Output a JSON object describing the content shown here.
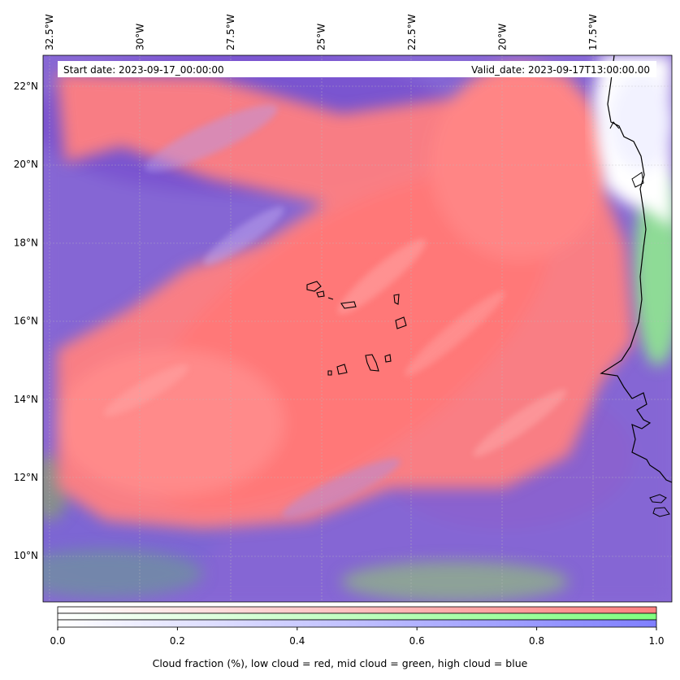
{
  "map": {
    "info_box": {
      "start_date": "Start date: 2023-09-17_00:00:00",
      "valid_date": "Valid_date: 2023-09-17T13:00:00.00"
    },
    "lon_labels": [
      {
        "lon": -32.5,
        "label": "32.5°W"
      },
      {
        "lon": -30.0,
        "label": "30°W"
      },
      {
        "lon": -27.5,
        "label": "27.5°W"
      },
      {
        "lon": -25.0,
        "label": "25°W"
      },
      {
        "lon": -22.5,
        "label": "22.5°W"
      },
      {
        "lon": -20.0,
        "label": "20°W"
      },
      {
        "lon": -17.5,
        "label": "17.5°W"
      }
    ],
    "lat_labels": [
      {
        "lat": 22,
        "label": "22°N"
      },
      {
        "lat": 20,
        "label": "20°N"
      },
      {
        "lat": 18,
        "label": "18°N"
      },
      {
        "lat": 16,
        "label": "16°N"
      },
      {
        "lat": 14,
        "label": "14°N"
      },
      {
        "lat": 12,
        "label": "12°N"
      },
      {
        "lat": 10,
        "label": "10°N"
      }
    ],
    "extent": {
      "lon_min": -32.6,
      "lon_max": -15.5,
      "lat_min": 8.9,
      "lat_max": 22.8
    },
    "layer_colors": {
      "low_cloud": "#ff7f7f",
      "mid_cloud": "#7fff7f",
      "high_cloud": "#7f7fff"
    },
    "places": [
      "Cape Verde Islands",
      "West African coast"
    ]
  },
  "colorbar": {
    "ticks": [
      {
        "value": 0.0,
        "label": "0.0"
      },
      {
        "value": 0.2,
        "label": "0.2"
      },
      {
        "value": 0.4,
        "label": "0.4"
      },
      {
        "value": 0.6,
        "label": "0.6"
      },
      {
        "value": 0.8,
        "label": "0.8"
      },
      {
        "value": 1.0,
        "label": "1.0"
      }
    ],
    "range": [
      0,
      1
    ],
    "label": "Cloud fraction (%), low cloud = red, mid cloud = green, high cloud = blue"
  }
}
